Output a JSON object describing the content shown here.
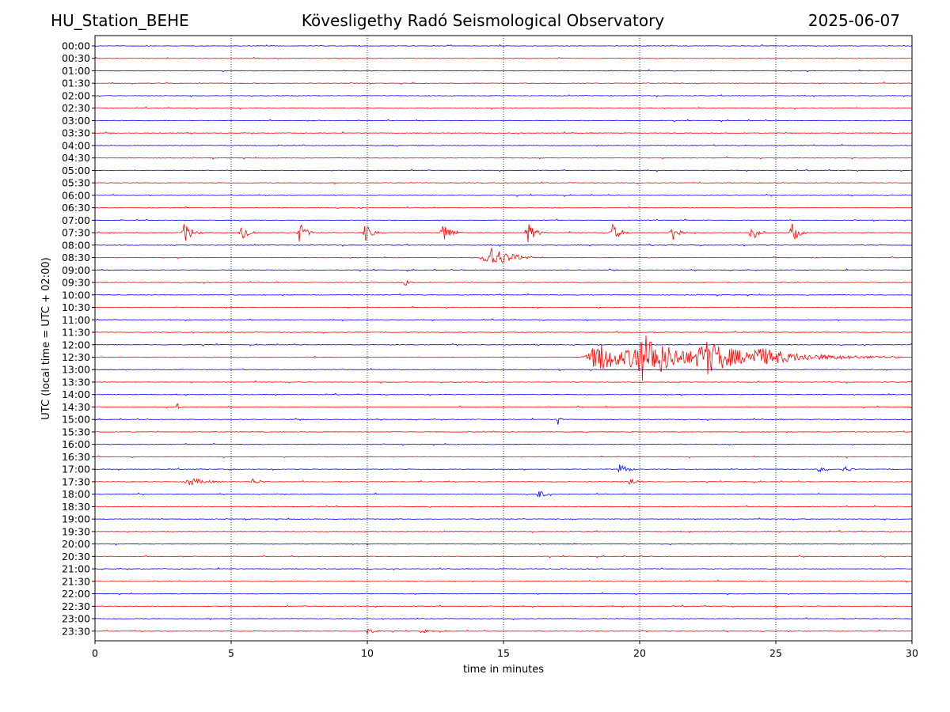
{
  "header": {
    "station": "HU_Station_BEHE",
    "observatory": "Kövesligethy Radó Seismological Observatory",
    "date": "2025-06-07"
  },
  "chart_data": {
    "type": "line",
    "title": "Kövesligethy Radó Seismological Observatory",
    "xlabel": "time in minutes",
    "ylabel": "UTC (local time = UTC + 02:00)",
    "xlim": [
      0,
      30
    ],
    "x_ticks": [
      "0",
      "5",
      "10",
      "15",
      "20",
      "25",
      "30"
    ],
    "x_gridlines": [
      5,
      10,
      15,
      20,
      25
    ],
    "grid": "vertical dotted",
    "colors": [
      "#0000ff",
      "#ff0000"
    ],
    "rows": [
      "00:00",
      "00:30",
      "01:00",
      "01:30",
      "02:00",
      "02:30",
      "03:00",
      "03:30",
      "04:00",
      "04:30",
      "05:00",
      "05:30",
      "06:00",
      "06:30",
      "07:00",
      "07:30",
      "08:00",
      "08:30",
      "09:00",
      "09:30",
      "10:00",
      "10:30",
      "11:00",
      "11:30",
      "12:00",
      "12:30",
      "13:00",
      "13:30",
      "14:00",
      "14:30",
      "15:00",
      "15:30",
      "16:00",
      "16:30",
      "17:00",
      "17:30",
      "18:00",
      "18:30",
      "19:00",
      "19:30",
      "20:00",
      "20:30",
      "21:00",
      "21:30",
      "22:00",
      "22:30",
      "23:00",
      "23:30"
    ],
    "events": [
      {
        "row": "07:30",
        "minute": 3.3,
        "amplitude": 0.9,
        "duration": 0.4
      },
      {
        "row": "07:30",
        "minute": 5.4,
        "amplitude": 0.9,
        "duration": 0.35
      },
      {
        "row": "07:30",
        "minute": 7.5,
        "amplitude": 0.9,
        "duration": 0.35
      },
      {
        "row": "07:30",
        "minute": 9.9,
        "amplitude": 0.9,
        "duration": 0.35
      },
      {
        "row": "07:30",
        "minute": 12.8,
        "amplitude": 0.9,
        "duration": 0.4
      },
      {
        "row": "07:30",
        "minute": 15.9,
        "amplitude": 0.9,
        "duration": 0.4
      },
      {
        "row": "07:30",
        "minute": 19.0,
        "amplitude": 0.8,
        "duration": 0.4
      },
      {
        "row": "07:30",
        "minute": 21.2,
        "amplitude": 0.9,
        "duration": 0.35
      },
      {
        "row": "07:30",
        "minute": 24.1,
        "amplitude": 0.8,
        "duration": 0.35
      },
      {
        "row": "07:30",
        "minute": 25.6,
        "amplitude": 0.9,
        "duration": 0.35
      },
      {
        "row": "08:30",
        "minute": 14.5,
        "amplitude": 1.1,
        "duration": 1.0
      },
      {
        "row": "09:30",
        "minute": 11.4,
        "amplitude": 0.4,
        "duration": 0.2
      },
      {
        "row": "12:30",
        "minute": 18.5,
        "amplitude": 1.4,
        "duration": 1.6
      },
      {
        "row": "12:30",
        "minute": 20.2,
        "amplitude": 1.9,
        "duration": 2.2
      },
      {
        "row": "12:30",
        "minute": 22.5,
        "amplitude": 1.2,
        "duration": 1.8
      },
      {
        "row": "12:30",
        "minute": 24.5,
        "amplitude": 0.6,
        "duration": 3.2
      },
      {
        "row": "14:30",
        "minute": 3.0,
        "amplitude": 0.45,
        "duration": 0.15
      },
      {
        "row": "15:00",
        "minute": 17.0,
        "amplitude": 0.7,
        "duration": 0.15
      },
      {
        "row": "17:00",
        "minute": 19.3,
        "amplitude": 0.55,
        "duration": 0.35
      },
      {
        "row": "17:00",
        "minute": 27.5,
        "amplitude": 0.35,
        "duration": 0.3
      },
      {
        "row": "17:00",
        "minute": 26.6,
        "amplitude": 0.25,
        "duration": 0.3
      },
      {
        "row": "17:30",
        "minute": 3.5,
        "amplitude": 0.35,
        "duration": 0.8
      },
      {
        "row": "17:30",
        "minute": 5.8,
        "amplitude": 0.3,
        "duration": 0.4
      },
      {
        "row": "17:30",
        "minute": 19.6,
        "amplitude": 0.45,
        "duration": 0.35
      },
      {
        "row": "18:00",
        "minute": 16.3,
        "amplitude": 0.4,
        "duration": 0.3
      },
      {
        "row": "23:30",
        "minute": 10.0,
        "amplitude": 0.25,
        "duration": 0.4
      },
      {
        "row": "23:30",
        "minute": 12.0,
        "amplitude": 0.2,
        "duration": 0.3
      }
    ]
  }
}
